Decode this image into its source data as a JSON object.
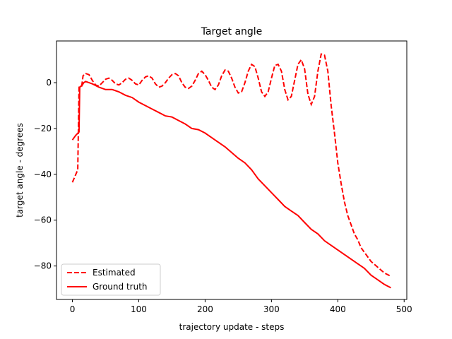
{
  "chart_data": {
    "type": "line",
    "title": "Target angle",
    "xlabel": "trajectory update - steps",
    "ylabel": "target angle - degrees",
    "xlim": [
      -24,
      504
    ],
    "ylim": [
      -94.6,
      18.2
    ],
    "xticks": [
      0,
      100,
      200,
      300,
      400,
      500
    ],
    "yticks": [
      {
        "value": -80,
        "label": "−80"
      },
      {
        "value": -60,
        "label": "−60"
      },
      {
        "value": -40,
        "label": "−40"
      },
      {
        "value": -20,
        "label": "−20"
      },
      0
    ],
    "legend": "lower left",
    "series": [
      {
        "name": "Estimated",
        "color": "#ff0000",
        "dashed": true,
        "x": [
          0,
          8,
          10,
          14,
          16,
          20,
          25,
          30,
          35,
          40,
          45,
          50,
          55,
          60,
          65,
          70,
          75,
          80,
          85,
          90,
          95,
          100,
          105,
          110,
          115,
          120,
          125,
          130,
          135,
          140,
          145,
          150,
          155,
          160,
          165,
          170,
          175,
          180,
          185,
          190,
          195,
          200,
          205,
          210,
          215,
          220,
          225,
          230,
          235,
          240,
          245,
          250,
          255,
          260,
          265,
          270,
          275,
          280,
          285,
          290,
          295,
          300,
          305,
          310,
          315,
          320,
          325,
          330,
          335,
          340,
          345,
          350,
          355,
          360,
          365,
          370,
          375,
          380,
          385,
          390,
          395,
          400,
          405,
          410,
          415,
          420,
          425,
          430,
          435,
          440,
          445,
          450,
          460,
          470,
          480
        ],
        "values": [
          -43.5,
          -38,
          -2,
          -1.5,
          3,
          4,
          3.5,
          1,
          -1,
          -1.5,
          0,
          1.5,
          2,
          1,
          -0.5,
          -1,
          0,
          1.5,
          2,
          1,
          -0.5,
          -1,
          1,
          2.5,
          3,
          2,
          -0.5,
          -2,
          -1.5,
          0,
          2,
          3.5,
          4,
          3,
          0,
          -2,
          -2.5,
          -1.5,
          1,
          4,
          5,
          3.5,
          1,
          -2,
          -3,
          -1,
          3,
          5.5,
          5,
          2,
          -2,
          -4.5,
          -4,
          0,
          5,
          8,
          7,
          2,
          -4,
          -6,
          -4,
          2,
          7.5,
          8,
          5,
          -3,
          -7.5,
          -6,
          1,
          8,
          10,
          6,
          -5,
          -9.5,
          -6,
          5,
          12.5,
          12,
          5,
          -10,
          -22,
          -35,
          -44,
          -52,
          -58,
          -62,
          -66,
          -68.5,
          -72,
          -74,
          -76,
          -78,
          -80.5,
          -83,
          -84.5
        ]
      },
      {
        "name": "Ground truth",
        "color": "#ff0000",
        "dashed": false,
        "x": [
          0,
          5,
          10,
          11,
          15,
          17,
          20,
          30,
          40,
          50,
          60,
          70,
          80,
          90,
          100,
          110,
          120,
          130,
          140,
          150,
          160,
          170,
          180,
          190,
          200,
          210,
          220,
          230,
          240,
          250,
          260,
          270,
          280,
          290,
          300,
          310,
          320,
          330,
          340,
          350,
          360,
          370,
          380,
          390,
          400,
          410,
          420,
          430,
          440,
          450,
          460,
          470,
          480
        ],
        "values": [
          -25,
          -23,
          -21.5,
          -2,
          -1,
          0,
          0.5,
          -0.5,
          -2,
          -3,
          -3,
          -4,
          -5.5,
          -6.5,
          -8.5,
          -10,
          -11.5,
          -13,
          -14.5,
          -15,
          -16.5,
          -18,
          -20,
          -20.5,
          -22,
          -24,
          -26,
          -28,
          -30.5,
          -33,
          -35,
          -38,
          -42,
          -45,
          -48,
          -51,
          -54,
          -56,
          -58,
          -61,
          -64,
          -66,
          -69,
          -71,
          -73,
          -75,
          -77,
          -79,
          -81,
          -84,
          -86,
          -88,
          -89.5
        ]
      }
    ]
  }
}
